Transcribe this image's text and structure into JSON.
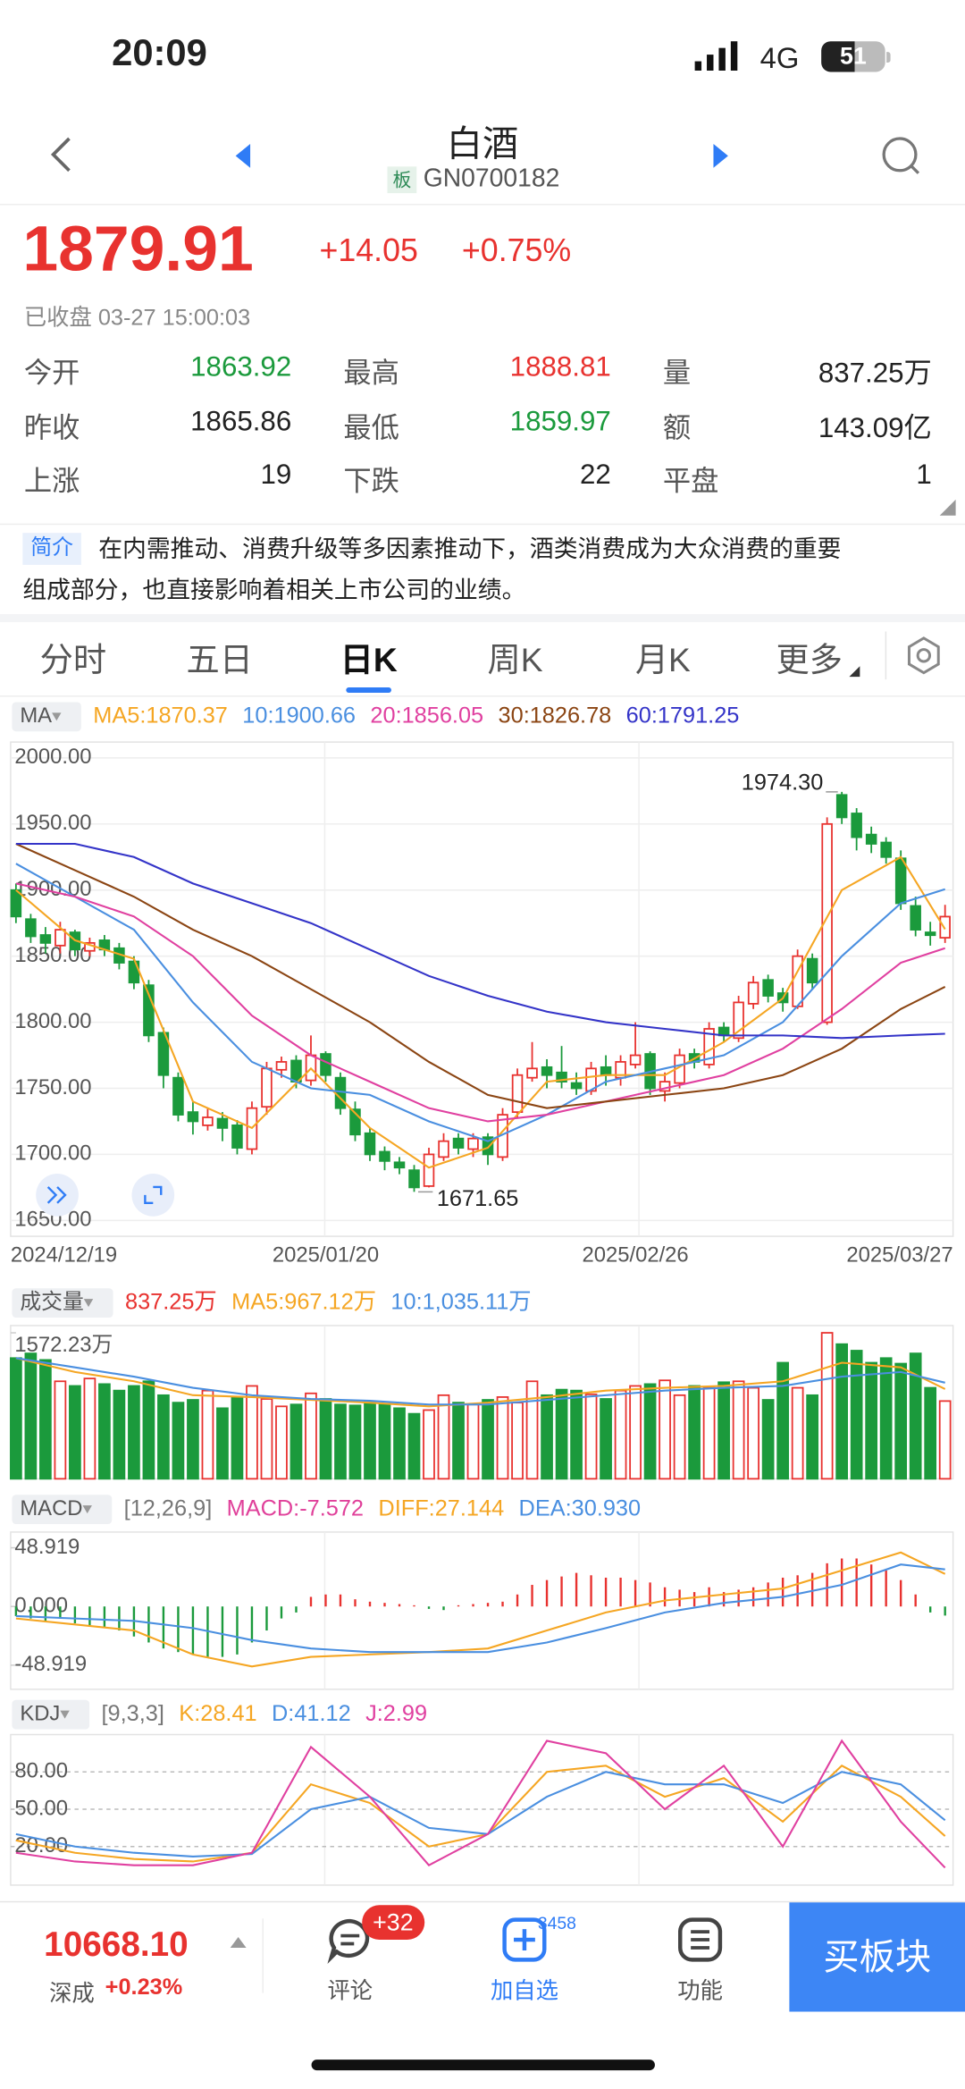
{
  "status_bar": {
    "time": "20:09",
    "network": "4G",
    "battery": "51"
  },
  "header": {
    "title": "白酒",
    "badge": "板",
    "code": "GN0700182"
  },
  "quote": {
    "price": "1879.91",
    "change": "+14.05",
    "change_pct": "+0.75%",
    "status": "已收盘 03-27 15:00:03"
  },
  "stats": [
    [
      {
        "label": "今开",
        "value": "1863.92"
      },
      {
        "label": "最高",
        "value": "1888.81"
      },
      {
        "label": "量",
        "value": "837.25万"
      }
    ],
    [
      {
        "label": "昨收",
        "value": "1865.86"
      },
      {
        "label": "最低",
        "value": "1859.97"
      },
      {
        "label": "额",
        "value": "143.09亿"
      }
    ],
    [
      {
        "label": "上涨",
        "value": "19"
      },
      {
        "label": "下跌",
        "value": "22"
      },
      {
        "label": "平盘",
        "value": "1"
      }
    ]
  ],
  "intro": {
    "tag": "简介",
    "lines": [
      "在内需推动、消费升级等多因素推动下，酒类消费成为大众消费的重要",
      "组成部分，也直接影响着相关上市公司的业绩。"
    ]
  },
  "tabs": [
    "分时",
    "五日",
    "日K",
    "周K",
    "月K",
    "更多"
  ],
  "bottom_bar": {
    "index_value": "10668.10",
    "index_name": "深成",
    "index_change": "+0.23%",
    "comment": "评论",
    "comment_badge": "+32",
    "watch": "加自选",
    "watch_badge": "3458",
    "tools": "功能",
    "buy": "买板块"
  },
  "chart_data": [
    {
      "type": "candlestick",
      "indicator": "MA",
      "categories": [
        "2024/12/19",
        null,
        null,
        null,
        null,
        null,
        null,
        null,
        null,
        null,
        null,
        null,
        null,
        null,
        null,
        null,
        null,
        null,
        null,
        null,
        null,
        "2025/01/20",
        null,
        null,
        null,
        null,
        null,
        null,
        null,
        null,
        null,
        null,
        null,
        null,
        null,
        null,
        null,
        null,
        null,
        null,
        null,
        null,
        "2025/02/26",
        null,
        null,
        null,
        null,
        null,
        null,
        null,
        null,
        null,
        null,
        null,
        null,
        null,
        null,
        null,
        null,
        null,
        null,
        null,
        null,
        "2025/03/27"
      ],
      "open": [
        1900,
        1878,
        1866,
        1858,
        1868,
        1854,
        1862,
        1856,
        1846,
        1828,
        1792,
        1758,
        1732,
        1722,
        1727,
        1722,
        1704,
        1736,
        1764,
        1771,
        1756,
        1776,
        1758,
        1734,
        1716,
        1702,
        1694,
        1688,
        1676,
        1698,
        1712,
        1704,
        1713,
        1698,
        1732,
        1758,
        1766,
        1762,
        1754,
        1748,
        1766,
        1758,
        1768,
        1776,
        1748,
        1754,
        1776,
        1768,
        1796,
        1788,
        1814,
        1832,
        1822,
        1812,
        1848,
        1800,
        1972,
        1958,
        1942,
        1936,
        1924,
        1888,
        1868,
        1863.92
      ],
      "high": [
        1905,
        1882,
        1872,
        1876,
        1870,
        1864,
        1866,
        1860,
        1850,
        1832,
        1796,
        1762,
        1740,
        1735,
        1732,
        1726,
        1740,
        1770,
        1774,
        1775,
        1790,
        1778,
        1762,
        1740,
        1720,
        1706,
        1698,
        1692,
        1705,
        1716,
        1716,
        1716,
        1716,
        1735,
        1765,
        1785,
        1772,
        1782,
        1762,
        1770,
        1775,
        1775,
        1800,
        1778,
        1762,
        1780,
        1780,
        1800,
        1800,
        1820,
        1835,
        1836,
        1826,
        1855,
        1852,
        1955,
        1974.3,
        1962,
        1948,
        1940,
        1930,
        1895,
        1876,
        1888.81
      ],
      "low": [
        1875,
        1860,
        1852,
        1852,
        1850,
        1850,
        1850,
        1840,
        1825,
        1785,
        1750,
        1725,
        1715,
        1718,
        1710,
        1700,
        1700,
        1730,
        1758,
        1750,
        1752,
        1755,
        1730,
        1710,
        1695,
        1688,
        1685,
        1671.65,
        1675,
        1695,
        1700,
        1698,
        1692,
        1695,
        1728,
        1755,
        1750,
        1750,
        1745,
        1745,
        1752,
        1752,
        1765,
        1745,
        1740,
        1750,
        1765,
        1765,
        1785,
        1785,
        1810,
        1815,
        1808,
        1810,
        1825,
        1798,
        1950,
        1930,
        1928,
        1920,
        1885,
        1865,
        1858,
        1859.97
      ],
      "close": [
        1880,
        1865,
        1860,
        1870,
        1855,
        1860,
        1855,
        1845,
        1830,
        1790,
        1760,
        1730,
        1725,
        1728,
        1720,
        1705,
        1735,
        1765,
        1770,
        1755,
        1775,
        1760,
        1735,
        1715,
        1700,
        1695,
        1690,
        1675,
        1700,
        1710,
        1705,
        1712,
        1700,
        1730,
        1760,
        1765,
        1760,
        1755,
        1750,
        1765,
        1760,
        1770,
        1775,
        1750,
        1755,
        1775,
        1770,
        1795,
        1790,
        1815,
        1830,
        1820,
        1815,
        1850,
        1830,
        1950,
        1955,
        1940,
        1935,
        1925,
        1890,
        1870,
        1865.86,
        1879.91
      ],
      "up_color": "#e8322f",
      "down_color": "#1b9a3c",
      "ylim": [
        1638,
        2012
      ],
      "yticks": [
        {
          "value": 2000,
          "label": "2000.00"
        },
        {
          "value": 1950,
          "label": "1950.00"
        },
        {
          "value": 1900,
          "label": "1900.00"
        },
        {
          "value": 1850,
          "label": "1850.00"
        },
        {
          "value": 1800,
          "label": "1800.00"
        },
        {
          "value": 1750,
          "label": "1750.00"
        },
        {
          "value": 1700,
          "label": "1700.00"
        },
        {
          "value": 1650,
          "label": "1650.00"
        }
      ],
      "grid": true,
      "annotations": [
        "1974.30",
        "1671.65"
      ],
      "series": [
        {
          "name": "MA5:1870.37",
          "color": "#f5a623",
          "x": [
            0,
            4,
            8,
            12,
            16,
            20,
            24,
            28,
            32,
            36,
            40,
            44,
            48,
            52,
            56,
            60,
            63
          ],
          "values": [
            1900,
            1862,
            1848,
            1740,
            1720,
            1765,
            1720,
            1690,
            1705,
            1755,
            1760,
            1760,
            1785,
            1818,
            1900,
            1925,
            1870.37
          ]
        },
        {
          "name": "10:1900.66",
          "color": "#4a8fe0",
          "x": [
            0,
            4,
            8,
            12,
            16,
            20,
            24,
            28,
            32,
            36,
            40,
            44,
            48,
            52,
            56,
            60,
            63
          ],
          "values": [
            1920,
            1895,
            1870,
            1815,
            1770,
            1750,
            1745,
            1725,
            1710,
            1730,
            1755,
            1765,
            1775,
            1800,
            1850,
            1890,
            1900.66
          ]
        },
        {
          "name": "20:1856.05",
          "color": "#e040a0",
          "x": [
            0,
            4,
            8,
            12,
            16,
            20,
            24,
            28,
            32,
            36,
            40,
            44,
            48,
            52,
            56,
            60,
            63
          ],
          "values": [
            1905,
            1895,
            1880,
            1850,
            1805,
            1775,
            1755,
            1735,
            1725,
            1730,
            1740,
            1750,
            1760,
            1780,
            1810,
            1845,
            1856.05
          ]
        },
        {
          "name": "30:1826.78",
          "color": "#8b4513",
          "x": [
            0,
            4,
            8,
            12,
            16,
            20,
            24,
            28,
            32,
            36,
            40,
            44,
            48,
            52,
            56,
            60,
            63
          ],
          "values": [
            1935,
            1915,
            1895,
            1870,
            1850,
            1825,
            1800,
            1770,
            1745,
            1735,
            1740,
            1745,
            1750,
            1760,
            1780,
            1810,
            1826.78
          ]
        },
        {
          "name": "60:1791.25",
          "color": "#3434c8",
          "x": [
            0,
            4,
            8,
            12,
            16,
            20,
            24,
            28,
            32,
            36,
            40,
            44,
            48,
            52,
            56,
            60,
            63
          ],
          "values": [
            1935,
            1935,
            1925,
            1905,
            1890,
            1875,
            1855,
            1835,
            1820,
            1808,
            1800,
            1795,
            1790,
            1790,
            1788,
            1790,
            1791.25
          ]
        }
      ]
    },
    {
      "type": "bar",
      "indicator": "成交量",
      "current": "837.25万",
      "current_color": "#e8322f",
      "values": [
        1300,
        1350,
        1280,
        1050,
        1000,
        1080,
        1020,
        950,
        1000,
        1050,
        900,
        820,
        850,
        950,
        760,
        880,
        1000,
        860,
        780,
        800,
        920,
        860,
        800,
        790,
        830,
        800,
        760,
        700,
        740,
        900,
        820,
        800,
        850,
        880,
        820,
        1050,
        900,
        960,
        950,
        910,
        860,
        950,
        1000,
        1020,
        1060,
        900,
        1000,
        980,
        1040,
        1050,
        980,
        850,
        1250,
        980,
        900,
        1572.23,
        1450,
        1380,
        1250,
        1300,
        1240,
        1350,
        980,
        837.25
      ],
      "ylim": [
        0,
        1650
      ],
      "yticks": [
        {
          "value": 1572.23,
          "label": "1572.23万"
        }
      ],
      "series": [
        {
          "name": "MA5:967.12万",
          "color": "#f5a623",
          "x": [
            0,
            4,
            8,
            12,
            16,
            20,
            24,
            28,
            32,
            36,
            40,
            44,
            48,
            52,
            56,
            60,
            63
          ],
          "values": [
            1300,
            1150,
            1050,
            900,
            880,
            850,
            820,
            780,
            820,
            880,
            950,
            980,
            1000,
            1050,
            1250,
            1200,
            967.12
          ]
        },
        {
          "name": "10:1,035.11万",
          "color": "#4a8fe0",
          "x": [
            0,
            4,
            8,
            12,
            16,
            20,
            24,
            28,
            32,
            36,
            40,
            44,
            48,
            52,
            56,
            60,
            63
          ],
          "values": [
            1300,
            1200,
            1100,
            980,
            900,
            860,
            840,
            800,
            800,
            850,
            900,
            950,
            980,
            1000,
            1100,
            1150,
            1035.11
          ]
        }
      ]
    },
    {
      "type": "macd",
      "indicator": "MACD",
      "params": "[12,26,9]",
      "bars_name": "MACD:-7.572",
      "bars_color": "#e0409a",
      "values": [
        -8,
        -10,
        -12,
        -10,
        -14,
        -16,
        -18,
        -20,
        -25,
        -30,
        -35,
        -38,
        -40,
        -42,
        -42,
        -40,
        -30,
        -20,
        -10,
        -5,
        8,
        10,
        10,
        6,
        4,
        3,
        2,
        1,
        -2,
        -3,
        1,
        2,
        3,
        4,
        10,
        18,
        22,
        25,
        28,
        26,
        24,
        24,
        22,
        20,
        16,
        14,
        12,
        16,
        12,
        14,
        16,
        20,
        24,
        26,
        28,
        36,
        40,
        40,
        35,
        30,
        22,
        10,
        -5,
        -7.572
      ],
      "ylim": [
        -69,
        62
      ],
      "yticks": [
        48.919,
        {
          "value": 0,
          "label": "0.000"
        },
        -48.919
      ],
      "series": [
        {
          "name": "DIFF:27.144",
          "color": "#f5a623",
          "x": [
            0,
            4,
            8,
            12,
            16,
            20,
            24,
            28,
            32,
            36,
            40,
            44,
            48,
            52,
            56,
            60,
            63
          ],
          "values": [
            -10,
            -15,
            -20,
            -40,
            -50,
            -42,
            -40,
            -38,
            -35,
            -20,
            -5,
            5,
            10,
            15,
            30,
            45,
            27.144
          ]
        },
        {
          "name": "DEA:30.930",
          "color": "#4a8fe0",
          "x": [
            0,
            4,
            8,
            12,
            16,
            20,
            24,
            28,
            32,
            36,
            40,
            44,
            48,
            52,
            56,
            60,
            63
          ],
          "values": [
            -8,
            -10,
            -12,
            -18,
            -28,
            -35,
            -38,
            -38,
            -38,
            -30,
            -18,
            -5,
            3,
            8,
            18,
            35,
            30.93
          ]
        }
      ]
    },
    {
      "type": "line",
      "indicator": "KDJ",
      "params": "[9,3,3]",
      "ylim": [
        -11,
        110
      ],
      "yticks": [
        {
          "value": 80,
          "label": "80.00"
        },
        {
          "value": 50,
          "label": "50.00"
        },
        {
          "value": 20,
          "label": "20.00"
        }
      ],
      "grid_dashed": true,
      "series": [
        {
          "name": "K:28.41",
          "color": "#f5a623",
          "x": [
            0,
            4,
            8,
            12,
            16,
            20,
            24,
            28,
            32,
            36,
            40,
            44,
            48,
            52,
            56,
            60,
            63
          ],
          "values": [
            25,
            15,
            10,
            8,
            15,
            70,
            55,
            20,
            30,
            80,
            85,
            60,
            75,
            40,
            85,
            60,
            28.41
          ]
        },
        {
          "name": "D:41.12",
          "color": "#4a8fe0",
          "x": [
            0,
            4,
            8,
            12,
            16,
            20,
            24,
            28,
            32,
            36,
            40,
            44,
            48,
            52,
            56,
            60,
            63
          ],
          "values": [
            30,
            20,
            15,
            12,
            14,
            50,
            60,
            35,
            30,
            60,
            80,
            70,
            70,
            55,
            80,
            70,
            41.12
          ]
        },
        {
          "name": "J:2.99",
          "color": "#e040a0",
          "x": [
            0,
            4,
            8,
            12,
            16,
            20,
            24,
            28,
            32,
            36,
            40,
            44,
            48,
            52,
            56,
            60,
            63
          ],
          "values": [
            15,
            8,
            5,
            5,
            15,
            100,
            60,
            5,
            30,
            105,
            95,
            50,
            85,
            20,
            105,
            40,
            2.99
          ]
        }
      ]
    }
  ]
}
